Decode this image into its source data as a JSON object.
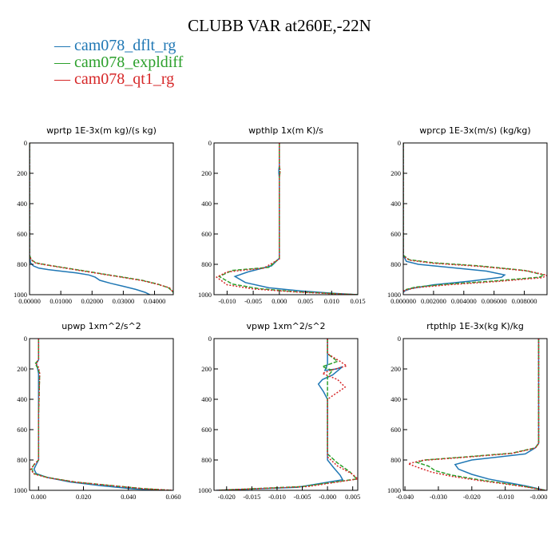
{
  "title": "CLUBB VAR at260E,-22N",
  "legend": [
    {
      "label": "cam078_dflt_rg",
      "color": "#1f77b4",
      "dash": ""
    },
    {
      "label": "cam078_expldiff",
      "color": "#2ca02c",
      "dash": "5,2"
    },
    {
      "label": "cam078_qt1_rg",
      "color": "#d62728",
      "dash": "2,2"
    }
  ],
  "chart_data": [
    {
      "type": "line",
      "title": "wprtp  1E-3x(m kg)/(s kg)",
      "xlim": [
        0.0,
        0.046
      ],
      "ylim": [
        1000,
        0
      ],
      "xticks": [
        0.0,
        0.01,
        0.02,
        0.03,
        0.04
      ],
      "xtick_labels": [
        "0.00000",
        "0.01000",
        "0.02000",
        "0.03000",
        "0.04000"
      ],
      "yticks": [
        0,
        200,
        400,
        600,
        800,
        1000
      ],
      "series": [
        {
          "name": "cam078_dflt_rg",
          "x": [
            0,
            0,
            0,
            0.0003,
            0.0012,
            0.003,
            0.006,
            0.01,
            0.015,
            0.019,
            0.021,
            0.0225,
            0.026,
            0.03,
            0.034,
            0.037,
            0.0385
          ],
          "y": [
            0,
            600,
            740,
            790,
            810,
            825,
            835,
            845,
            857,
            870,
            885,
            905,
            925,
            945,
            965,
            985,
            1000
          ]
        },
        {
          "name": "cam078_expldiff",
          "x": [
            0,
            0,
            0,
            0.0006,
            0.002,
            0.006,
            0.012,
            0.018,
            0.024,
            0.03,
            0.036,
            0.041,
            0.0445,
            0.046
          ],
          "y": [
            0,
            600,
            740,
            770,
            790,
            805,
            825,
            845,
            865,
            885,
            905,
            930,
            955,
            985
          ]
        },
        {
          "name": "cam078_qt1_rg",
          "x": [
            0,
            0,
            0,
            0.0006,
            0.002,
            0.006,
            0.012,
            0.018,
            0.024,
            0.03,
            0.036,
            0.041,
            0.0448,
            0.046
          ],
          "y": [
            0,
            600,
            745,
            772,
            792,
            807,
            827,
            847,
            867,
            887,
            907,
            932,
            955,
            985
          ]
        }
      ]
    },
    {
      "type": "line",
      "title": "wpthlp  1x(m K)/s",
      "xlim": [
        -0.0125,
        0.015
      ],
      "ylim": [
        1000,
        0
      ],
      "xticks": [
        -0.01,
        -0.005,
        0.0,
        0.005,
        0.01,
        0.015
      ],
      "xtick_labels": [
        "-0.010",
        "-0.005",
        "0.000",
        "0.005",
        "0.010",
        "0.015"
      ],
      "yticks": [
        0,
        200,
        400,
        600,
        800,
        1000
      ],
      "series": [
        {
          "name": "cam078_dflt_rg",
          "x": [
            0,
            0,
            -0.0001,
            -0.0001,
            0,
            0,
            0,
            -0.0015,
            -0.006,
            -0.0085,
            -0.0065,
            -0.002,
            0.004,
            0.01,
            0.015
          ],
          "y": [
            0,
            150,
            175,
            200,
            230,
            600,
            760,
            810,
            850,
            880,
            920,
            955,
            975,
            990,
            1000
          ]
        },
        {
          "name": "cam078_expldiff",
          "x": [
            0,
            0,
            0.0001,
            0.0001,
            0,
            0,
            0,
            -0.002,
            -0.009,
            -0.0115,
            -0.009,
            -0.004,
            0.003,
            0.01,
            0.015
          ],
          "y": [
            0,
            150,
            175,
            200,
            230,
            600,
            760,
            820,
            840,
            880,
            930,
            960,
            980,
            992,
            1000
          ]
        },
        {
          "name": "cam078_qt1_rg",
          "x": [
            0,
            0,
            0.0001,
            0.0001,
            0,
            0,
            0,
            -0.003,
            -0.01,
            -0.012,
            -0.01,
            -0.005,
            0.003,
            0.01,
            0.015
          ],
          "y": [
            0,
            150,
            175,
            200,
            230,
            600,
            765,
            825,
            850,
            885,
            935,
            962,
            982,
            993,
            1000
          ]
        }
      ]
    },
    {
      "type": "line",
      "title": "wprcp  1E-3x(m/s) (kg/kg)",
      "xlim": [
        0.0,
        0.0095
      ],
      "ylim": [
        1000,
        0
      ],
      "xticks": [
        0.0,
        0.002,
        0.004,
        0.006,
        0.008
      ],
      "xtick_labels": [
        "0.000000",
        "0.002000",
        "0.004000",
        "0.006000",
        "0.008000"
      ],
      "yticks": [
        0,
        200,
        400,
        600,
        800,
        1000
      ],
      "series": [
        {
          "name": "cam078_dflt_rg",
          "x": [
            0,
            0,
            0,
            0.0002,
            0.001,
            0.003,
            0.0055,
            0.0067,
            0.0065,
            0.0045,
            0.002,
            0.0005,
            0.0001,
            0
          ],
          "y": [
            0,
            600,
            740,
            780,
            800,
            820,
            845,
            870,
            885,
            910,
            935,
            960,
            975,
            985
          ]
        },
        {
          "name": "cam078_expldiff",
          "x": [
            0,
            0,
            0,
            0.0004,
            0.002,
            0.005,
            0.008,
            0.0093,
            0.009,
            0.006,
            0.003,
            0.0008,
            0.0002,
            0
          ],
          "y": [
            0,
            600,
            740,
            770,
            790,
            810,
            840,
            870,
            885,
            910,
            930,
            950,
            965,
            975
          ]
        },
        {
          "name": "cam078_qt1_rg",
          "x": [
            0,
            0,
            0,
            0.0004,
            0.002,
            0.005,
            0.0082,
            0.0095,
            0.0092,
            0.0062,
            0.0032,
            0.0009,
            0.0002,
            0
          ],
          "y": [
            0,
            600,
            745,
            773,
            793,
            813,
            843,
            872,
            888,
            913,
            933,
            953,
            968,
            978
          ]
        }
      ]
    },
    {
      "type": "line",
      "title": "upwp  1xm^2/s^2",
      "xlim": [
        -0.004,
        0.06
      ],
      "ylim": [
        1000,
        0
      ],
      "xticks": [
        0.0,
        0.02,
        0.04,
        0.06
      ],
      "xtick_labels": [
        "0.000",
        "0.020",
        "0.040",
        "0.060"
      ],
      "yticks": [
        0,
        200,
        400,
        600,
        800,
        1000
      ],
      "series": [
        {
          "name": "cam078_dflt_rg",
          "x": [
            0,
            0,
            -0.001,
            -0.0005,
            0,
            0,
            0,
            -0.001,
            -0.002,
            -0.001,
            0.004,
            0.014,
            0.028,
            0.042,
            0.055
          ],
          "y": [
            0,
            140,
            165,
            190,
            230,
            500,
            800,
            830,
            860,
            890,
            915,
            945,
            970,
            990,
            1000
          ]
        },
        {
          "name": "cam078_expldiff",
          "x": [
            0,
            0,
            -0.0015,
            -0.0005,
            0.0005,
            0,
            0,
            -0.002,
            -0.003,
            -0.002,
            0.004,
            0.016,
            0.032,
            0.046,
            0.059
          ],
          "y": [
            0,
            140,
            165,
            190,
            230,
            500,
            800,
            830,
            860,
            890,
            915,
            945,
            968,
            988,
            1000
          ]
        },
        {
          "name": "cam078_qt1_rg",
          "x": [
            0,
            0,
            -0.001,
            0,
            0.0005,
            0,
            0,
            -0.002,
            -0.0035,
            -0.002,
            0.004,
            0.017,
            0.033,
            0.047,
            0.06
          ],
          "y": [
            0,
            140,
            165,
            190,
            230,
            500,
            800,
            832,
            862,
            892,
            917,
            947,
            970,
            990,
            1000
          ]
        }
      ]
    },
    {
      "type": "line",
      "title": "vpwp  1xm^2/s^2",
      "xlim": [
        -0.0225,
        0.006
      ],
      "ylim": [
        1000,
        0
      ],
      "xticks": [
        -0.02,
        -0.015,
        -0.01,
        -0.005,
        0.0,
        0.005
      ],
      "xtick_labels": [
        "-0.020",
        "-0.015",
        "-0.010",
        "-0.005",
        "-0.000",
        "0.005"
      ],
      "yticks": [
        0,
        200,
        400,
        600,
        800,
        1000
      ],
      "series": [
        {
          "name": "cam078_dflt_rg",
          "x": [
            0,
            0,
            0,
            -0.0005,
            0.0018,
            0.003,
            0.001,
            -0.001,
            -0.0018,
            -0.0008,
            0,
            0,
            0,
            0.0012,
            0.0025,
            0.003,
            -0.006,
            -0.022
          ],
          "y": [
            0,
            100,
            170,
            210,
            200,
            185,
            240,
            270,
            300,
            350,
            400,
            500,
            800,
            850,
            900,
            930,
            980,
            1000
          ]
        },
        {
          "name": "cam078_expldiff",
          "x": [
            0,
            0,
            0.002,
            -0.001,
            0.001,
            0,
            0,
            0,
            0,
            0.002,
            0.0045,
            0.0058,
            -0.005,
            -0.022
          ],
          "y": [
            0,
            100,
            150,
            185,
            210,
            250,
            300,
            500,
            760,
            820,
            880,
            925,
            975,
            1000
          ]
        },
        {
          "name": "cam078_qt1_rg",
          "x": [
            0,
            0,
            0.0025,
            0.0038,
            0.0005,
            -0.001,
            0.002,
            0.0035,
            0,
            0,
            0,
            0.002,
            0.0048,
            0.006,
            -0.004,
            -0.022
          ],
          "y": [
            0,
            100,
            150,
            180,
            210,
            230,
            270,
            320,
            400,
            500,
            780,
            840,
            890,
            925,
            975,
            1000
          ]
        }
      ]
    },
    {
      "type": "line",
      "title": "rtpthlp  1E-3x(kg K)/kg",
      "xlim": [
        -0.0405,
        0.0025
      ],
      "ylim": [
        1000,
        0
      ],
      "xticks": [
        -0.04,
        -0.03,
        -0.02,
        -0.01,
        0.0
      ],
      "xtick_labels": [
        "-0.040",
        "-0.030",
        "-0.020",
        "-0.010",
        "-0.000"
      ],
      "yticks": [
        0,
        200,
        400,
        600,
        800,
        1000
      ],
      "series": [
        {
          "name": "cam078_dflt_rg",
          "x": [
            0,
            0,
            0,
            -0.001,
            -0.004,
            -0.012,
            -0.02,
            -0.025,
            -0.024,
            -0.02,
            -0.015,
            -0.009,
            -0.004,
            -0.001,
            0.002
          ],
          "y": [
            0,
            500,
            690,
            720,
            760,
            780,
            800,
            830,
            860,
            895,
            925,
            950,
            970,
            985,
            1000
          ]
        },
        {
          "name": "cam078_expldiff",
          "x": [
            0,
            0,
            0,
            -0.001,
            -0.008,
            -0.022,
            -0.034,
            -0.0365,
            -0.033,
            -0.031,
            -0.026,
            -0.018,
            -0.01,
            -0.004,
            0.002
          ],
          "y": [
            0,
            500,
            690,
            720,
            755,
            780,
            800,
            815,
            840,
            870,
            900,
            930,
            955,
            975,
            1000
          ]
        },
        {
          "name": "cam078_qt1_rg",
          "x": [
            0,
            0,
            0,
            -0.001,
            -0.008,
            -0.022,
            -0.035,
            -0.039,
            -0.036,
            -0.032,
            -0.026,
            -0.018,
            -0.01,
            -0.004,
            0.002
          ],
          "y": [
            0,
            500,
            692,
            722,
            757,
            782,
            803,
            825,
            850,
            880,
            908,
            935,
            958,
            977,
            1000
          ]
        }
      ]
    }
  ]
}
